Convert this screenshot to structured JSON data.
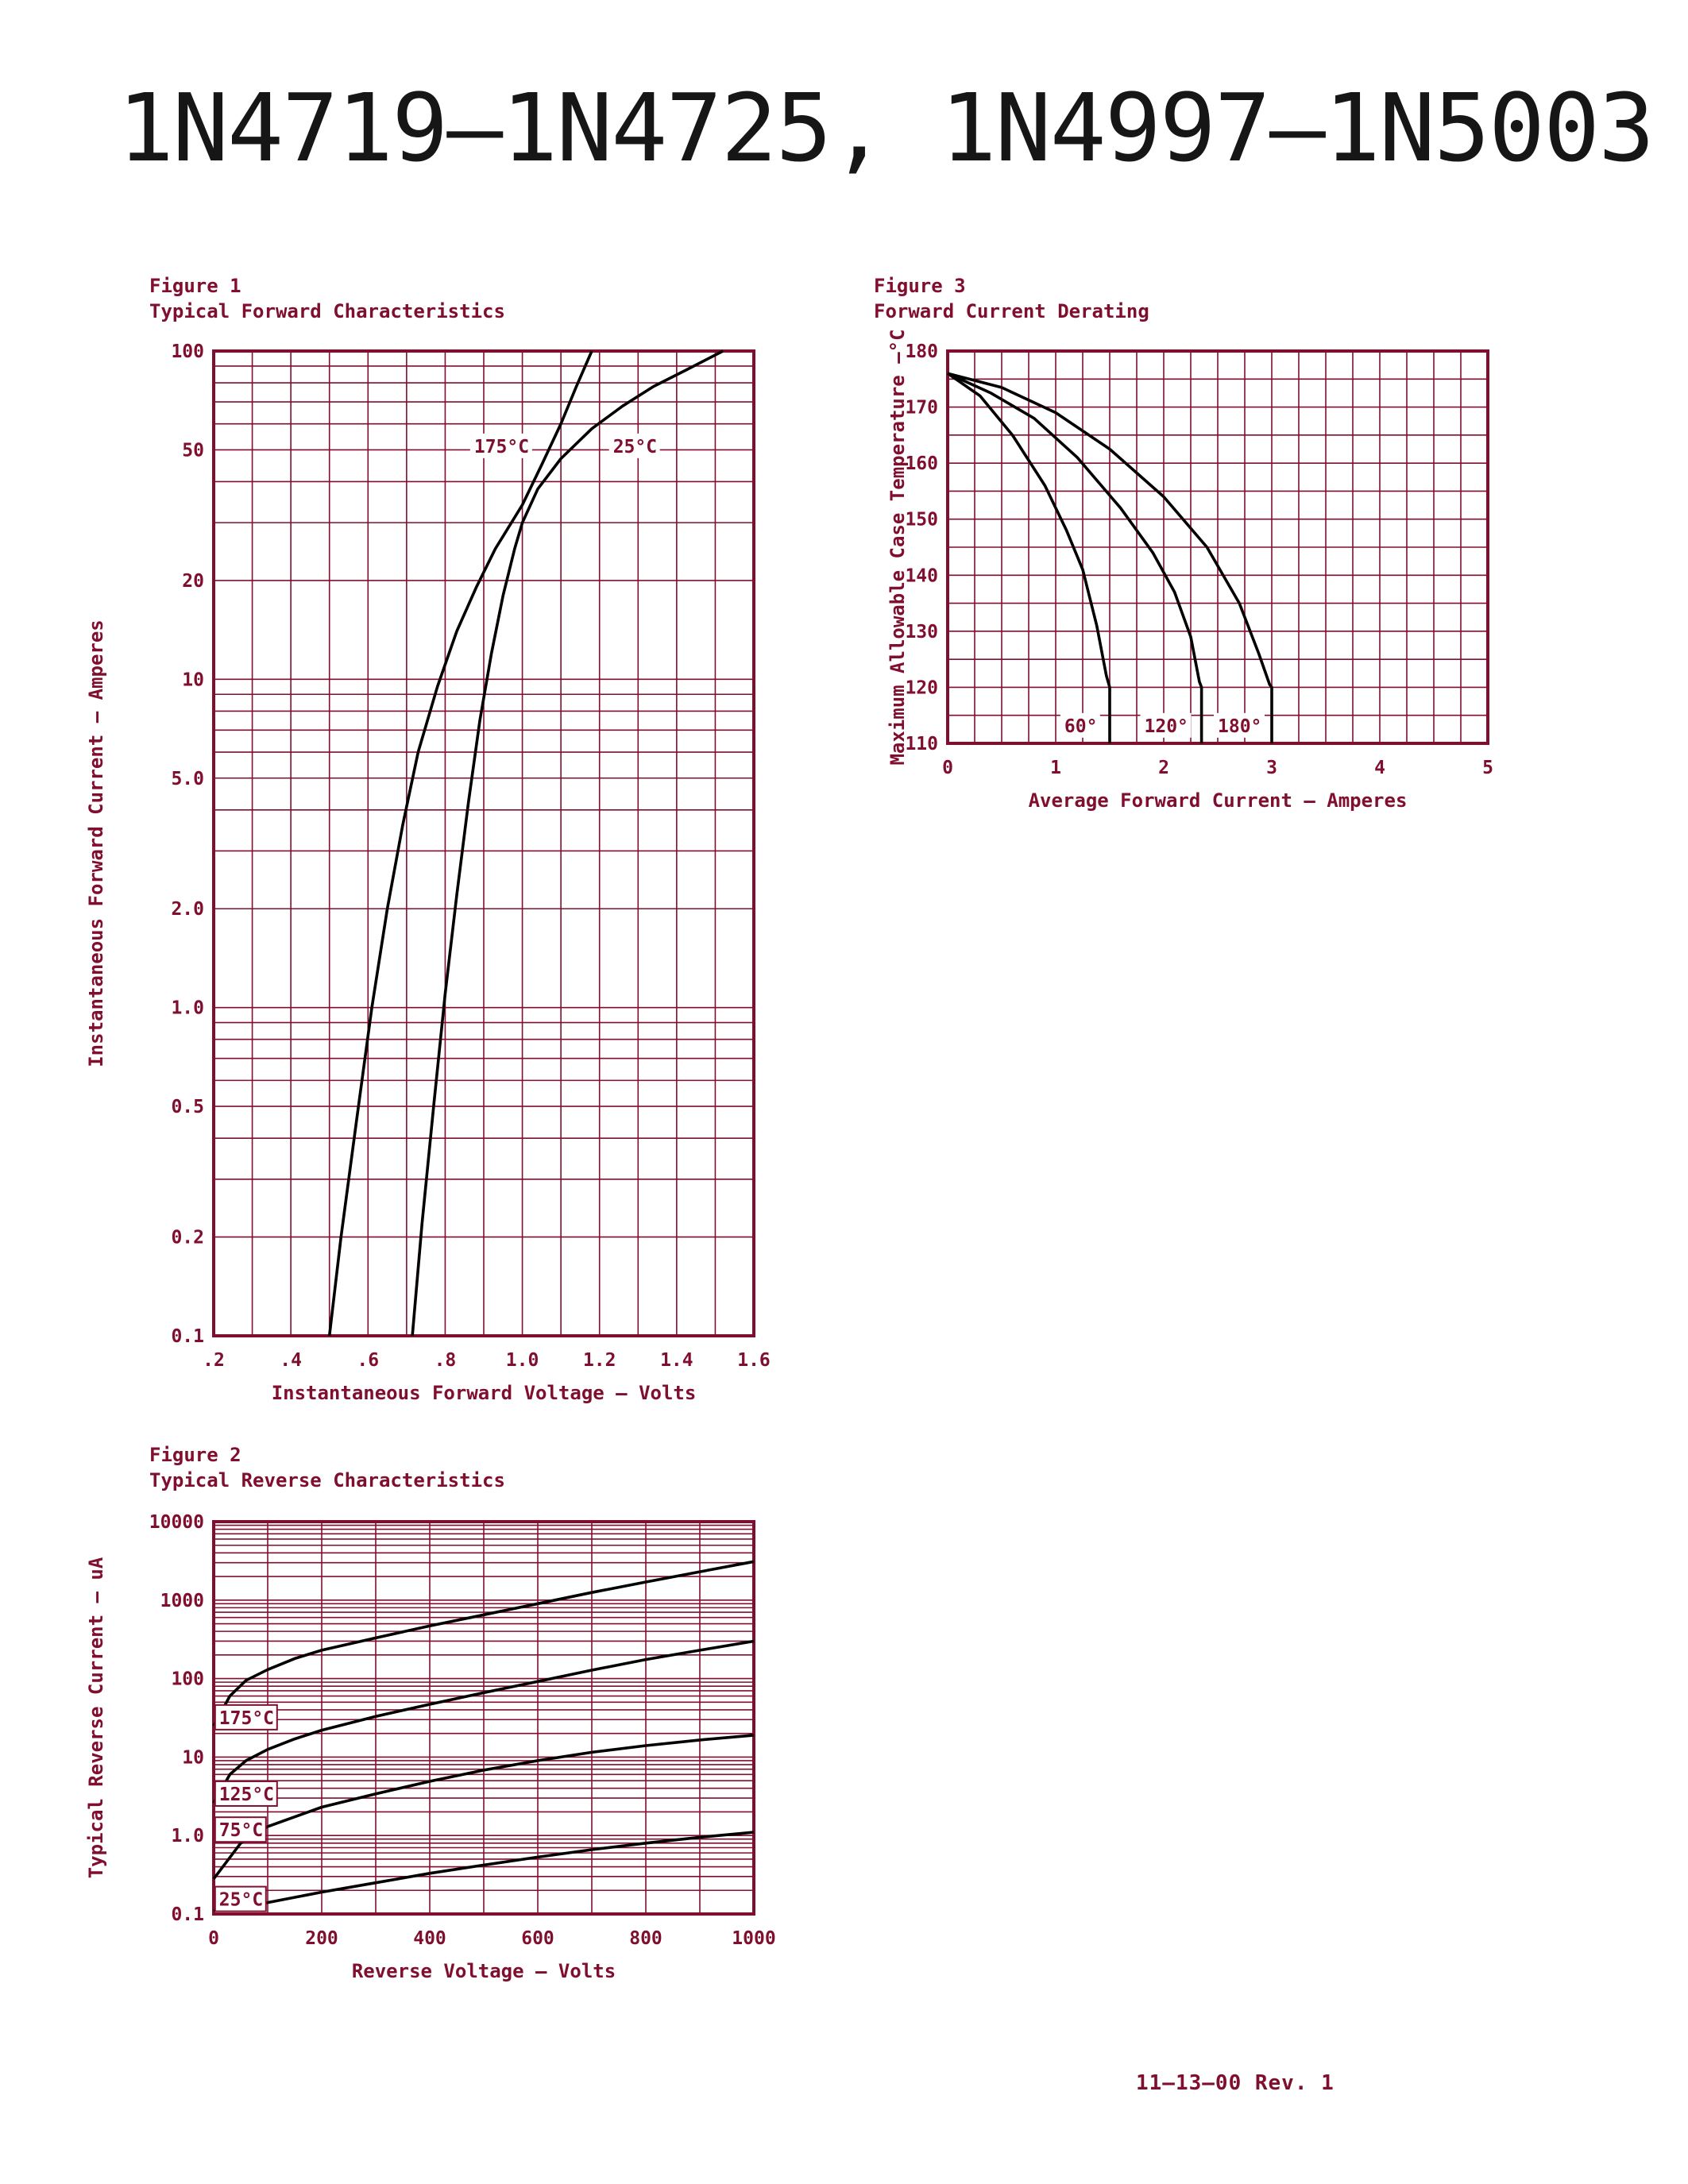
{
  "page": {
    "title": "1N4719–1N4725, 1N4997–1N5003",
    "footer": "11–13–00  Rev. 1",
    "colors": {
      "accent": "#800f2f",
      "curve": "#000000",
      "background": "#ffffff"
    }
  },
  "chart_data": [
    {
      "id": "fig1",
      "type": "line",
      "figure_label": "Figure 1",
      "title": "Typical Forward Characteristics",
      "xlabel": "Instantaneous Forward Voltage – Volts",
      "ylabel": "Instantaneous Forward Current – Amperes",
      "x_axis": {
        "scale": "linear",
        "min": 0.2,
        "max": 1.6,
        "grid_step": 0.1,
        "ticks": [
          {
            "v": 0.2,
            "l": ".2"
          },
          {
            "v": 0.4,
            "l": ".4"
          },
          {
            "v": 0.6,
            "l": ".6"
          },
          {
            "v": 0.8,
            "l": ".8"
          },
          {
            "v": 1.0,
            "l": "1.0"
          },
          {
            "v": 1.2,
            "l": "1.2"
          },
          {
            "v": 1.4,
            "l": "1.4"
          },
          {
            "v": 1.6,
            "l": "1.6"
          }
        ]
      },
      "y_axis": {
        "scale": "log",
        "min": 0.1,
        "max": 100,
        "ticks": [
          {
            "v": 100,
            "l": "100"
          },
          {
            "v": 50,
            "l": "50"
          },
          {
            "v": 20,
            "l": "20"
          },
          {
            "v": 10,
            "l": "10"
          },
          {
            "v": 5,
            "l": "5.0"
          },
          {
            "v": 2,
            "l": "2.0"
          },
          {
            "v": 1,
            "l": "1.0"
          },
          {
            "v": 0.5,
            "l": "0.5"
          },
          {
            "v": 0.2,
            "l": "0.2"
          },
          {
            "v": 0.1,
            "l": "0.1"
          }
        ]
      },
      "series": [
        {
          "name": "175°C",
          "points": [
            [
              0.5,
              0.1
            ],
            [
              0.53,
              0.2
            ],
            [
              0.57,
              0.45
            ],
            [
              0.61,
              1.0
            ],
            [
              0.65,
              2.0
            ],
            [
              0.69,
              3.6
            ],
            [
              0.73,
              6.0
            ],
            [
              0.78,
              9.5
            ],
            [
              0.83,
              14
            ],
            [
              0.88,
              19
            ],
            [
              0.93,
              25
            ],
            [
              1.0,
              34
            ],
            [
              1.05,
              45
            ],
            [
              1.1,
              60
            ],
            [
              1.14,
              78
            ],
            [
              1.18,
              100
            ]
          ]
        },
        {
          "name": "25°C",
          "points": [
            [
              0.715,
              0.1
            ],
            [
              0.74,
              0.22
            ],
            [
              0.77,
              0.5
            ],
            [
              0.8,
              1.1
            ],
            [
              0.83,
              2.2
            ],
            [
              0.86,
              4.2
            ],
            [
              0.89,
              7.5
            ],
            [
              0.92,
              12
            ],
            [
              0.95,
              18
            ],
            [
              0.98,
              25
            ],
            [
              1.0,
              30
            ],
            [
              1.04,
              38
            ],
            [
              1.1,
              47
            ],
            [
              1.18,
              58
            ],
            [
              1.26,
              68
            ],
            [
              1.34,
              78
            ],
            [
              1.42,
              87
            ],
            [
              1.52,
              100
            ]
          ]
        }
      ],
      "annotations": [
        {
          "text": "175°C",
          "x": 0.875,
          "y": 51,
          "boxed": false
        },
        {
          "text": "25°C",
          "x": 1.235,
          "y": 51,
          "boxed": false
        }
      ]
    },
    {
      "id": "fig2",
      "type": "line",
      "figure_label": "Figure 2",
      "title": "Typical Reverse Characteristics",
      "xlabel": "Reverse Voltage – Volts",
      "ylabel": "Typical Reverse Current – uA",
      "x_axis": {
        "scale": "linear",
        "min": 0,
        "max": 1000,
        "grid_step": 100,
        "ticks": [
          {
            "v": 0,
            "l": "0"
          },
          {
            "v": 200,
            "l": "200"
          },
          {
            "v": 400,
            "l": "400"
          },
          {
            "v": 600,
            "l": "600"
          },
          {
            "v": 800,
            "l": "800"
          },
          {
            "v": 1000,
            "l": "1000"
          }
        ]
      },
      "y_axis": {
        "scale": "log",
        "min": 0.1,
        "max": 10000,
        "ticks": [
          {
            "v": 10000,
            "l": "10000"
          },
          {
            "v": 1000,
            "l": "1000"
          },
          {
            "v": 100,
            "l": "100"
          },
          {
            "v": 10,
            "l": "10"
          },
          {
            "v": 1,
            "l": "1.0"
          },
          {
            "v": 0.1,
            "l": "0.1"
          }
        ]
      },
      "series": [
        {
          "name": "175°C",
          "points": [
            [
              0,
              25
            ],
            [
              30,
              60
            ],
            [
              60,
              95
            ],
            [
              100,
              130
            ],
            [
              150,
              180
            ],
            [
              200,
              230
            ],
            [
              300,
              330
            ],
            [
              400,
              470
            ],
            [
              500,
              650
            ],
            [
              600,
              900
            ],
            [
              700,
              1250
            ],
            [
              800,
              1700
            ],
            [
              900,
              2300
            ],
            [
              1000,
              3100
            ]
          ]
        },
        {
          "name": "125°C",
          "points": [
            [
              0,
              2.6
            ],
            [
              30,
              6
            ],
            [
              60,
              9
            ],
            [
              100,
              12.5
            ],
            [
              150,
              17
            ],
            [
              200,
              22
            ],
            [
              300,
              33
            ],
            [
              400,
              47
            ],
            [
              500,
              66
            ],
            [
              600,
              92
            ],
            [
              700,
              128
            ],
            [
              800,
              175
            ],
            [
              900,
              230
            ],
            [
              1000,
              300
            ]
          ]
        },
        {
          "name": "75°C",
          "points": [
            [
              0,
              0.28
            ],
            [
              50,
              0.8
            ],
            [
              100,
              1.3
            ],
            [
              200,
              2.3
            ],
            [
              300,
              3.4
            ],
            [
              400,
              4.9
            ],
            [
              500,
              6.8
            ],
            [
              600,
              9
            ],
            [
              700,
              11.5
            ],
            [
              800,
              14
            ],
            [
              900,
              16.5
            ],
            [
              1000,
              19
            ]
          ]
        },
        {
          "name": "25°C",
          "points": [
            [
              0,
              0.11
            ],
            [
              100,
              0.14
            ],
            [
              200,
              0.19
            ],
            [
              300,
              0.25
            ],
            [
              400,
              0.33
            ],
            [
              500,
              0.42
            ],
            [
              600,
              0.53
            ],
            [
              700,
              0.66
            ],
            [
              800,
              0.8
            ],
            [
              900,
              0.95
            ],
            [
              1000,
              1.1
            ]
          ]
        }
      ],
      "annotations": [
        {
          "text": "175°C",
          "x": 10,
          "y": 31,
          "boxed": true
        },
        {
          "text": "125°C",
          "x": 10,
          "y": 3.3,
          "boxed": true
        },
        {
          "text": "75°C",
          "x": 10,
          "y": 1.15,
          "boxed": true
        },
        {
          "text": "25°C",
          "x": 10,
          "y": 0.15,
          "boxed": true
        }
      ]
    },
    {
      "id": "fig3",
      "type": "line",
      "figure_label": "Figure 3",
      "title": "Forward Current Derating",
      "xlabel": "Average Forward Current – Amperes",
      "ylabel": "Maximum Allowable Case Temperature –°C",
      "x_axis": {
        "scale": "linear",
        "min": 0,
        "max": 5,
        "grid_step": 0.25,
        "ticks": [
          {
            "v": 0,
            "l": "0"
          },
          {
            "v": 1,
            "l": "1"
          },
          {
            "v": 2,
            "l": "2"
          },
          {
            "v": 3,
            "l": "3"
          },
          {
            "v": 4,
            "l": "4"
          },
          {
            "v": 5,
            "l": "5"
          }
        ]
      },
      "y_axis": {
        "scale": "linear",
        "min": 110,
        "max": 180,
        "grid_step": 5,
        "ticks": [
          {
            "v": 180,
            "l": "180"
          },
          {
            "v": 170,
            "l": "170"
          },
          {
            "v": 160,
            "l": "160"
          },
          {
            "v": 150,
            "l": "150"
          },
          {
            "v": 140,
            "l": "140"
          },
          {
            "v": 130,
            "l": "130"
          },
          {
            "v": 120,
            "l": "120"
          },
          {
            "v": 110,
            "l": "110"
          }
        ]
      },
      "series": [
        {
          "name": "60°",
          "points": [
            [
              0,
              176
            ],
            [
              0.3,
              172
            ],
            [
              0.6,
              165
            ],
            [
              0.9,
              156
            ],
            [
              1.1,
              148
            ],
            [
              1.25,
              141
            ],
            [
              1.38,
              131
            ],
            [
              1.47,
              122
            ],
            [
              1.5,
              120
            ],
            [
              1.5,
              110
            ]
          ]
        },
        {
          "name": "120°",
          "points": [
            [
              0,
              176
            ],
            [
              0.4,
              172.5
            ],
            [
              0.8,
              168
            ],
            [
              1.2,
              161
            ],
            [
              1.6,
              152
            ],
            [
              1.9,
              144
            ],
            [
              2.1,
              137
            ],
            [
              2.25,
              129
            ],
            [
              2.33,
              121
            ],
            [
              2.35,
              120
            ],
            [
              2.35,
              110
            ]
          ]
        },
        {
          "name": "180°",
          "points": [
            [
              0,
              176
            ],
            [
              0.5,
              173.5
            ],
            [
              1.0,
              169
            ],
            [
              1.5,
              162.5
            ],
            [
              2.0,
              154
            ],
            [
              2.4,
              145
            ],
            [
              2.7,
              135
            ],
            [
              2.88,
              126
            ],
            [
              2.98,
              120.5
            ],
            [
              3.0,
              120
            ],
            [
              3.0,
              110
            ]
          ]
        }
      ],
      "annotations": [
        {
          "text": "60°",
          "x": 1.08,
          "y": 113,
          "boxed": false
        },
        {
          "text": "120°",
          "x": 1.82,
          "y": 113,
          "boxed": false
        },
        {
          "text": "180°",
          "x": 2.5,
          "y": 113,
          "boxed": false
        }
      ]
    }
  ]
}
